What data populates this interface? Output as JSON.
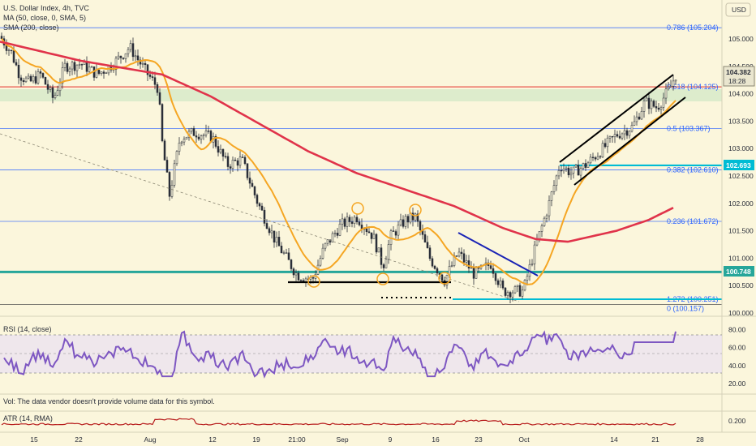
{
  "header": {
    "title": "U.S. Dollar Index, 4h, TVC",
    "ma50": "MA (50, close, 0, SMA, 5)",
    "sma200": "SMA (200, close)",
    "currency": "USD"
  },
  "rsi_label": "RSI (14, close)",
  "vol_label": "Vol: The data vendor doesn't provide volume data for this symbol.",
  "atr_label": "ATR (14, RMA)",
  "fib": [
    {
      "label": "0.786 (105.204)",
      "price": 105.204
    },
    {
      "label": "0.618 (104.125)",
      "price": 104.125
    },
    {
      "label": "0.5 (103.367)",
      "price": 103.367
    },
    {
      "label": "0.382 (102.610)",
      "price": 102.61
    },
    {
      "label": "0.236 (101.672)",
      "price": 101.672
    },
    {
      "label": "1.272 (100.251)",
      "price": 100.251
    },
    {
      "label": "0 (100.157)",
      "price": 100.157
    }
  ],
  "tags": {
    "last_price": "104.382",
    "countdown": "18:28",
    "resistance": "102.693",
    "support": "100.748"
  },
  "colors": {
    "background": "#fbf6dc",
    "candle_up": "#2a2e39",
    "candle_down": "#2a2e39",
    "ma50": "#f5a623",
    "sma200": "#e0334a",
    "fib_line": "#2962ff",
    "fib_618": "#e53935",
    "support_line": "#26a69a",
    "resistance_line": "#00bcd4",
    "rsi_line": "#7e57c2",
    "atr_line": "#b71c1c",
    "zone_fill": "#c9e6c2"
  },
  "chart_data": [
    {
      "type": "line",
      "title": "U.S. Dollar Index, 4h, TVC",
      "x_tick_labels": [
        "15",
        "22",
        "Aug",
        "12",
        "19",
        "21:00",
        "Sep",
        "9",
        "16",
        "23",
        "Oct",
        "14",
        "21",
        "28"
      ],
      "y_tick_labels": [
        "105.000",
        "104.500",
        "104.000",
        "103.500",
        "103.000",
        "102.500",
        "102.000",
        "101.500",
        "101.000",
        "100.500",
        "100.000"
      ],
      "ylim": [
        99.95,
        105.6
      ],
      "approx_closes_by_tick": [
        {
          "x": "15",
          "y": 104.9
        },
        {
          "x": "22",
          "y": 104.3
        },
        {
          "x": "Aug",
          "y": 104.5
        },
        {
          "x": "12",
          "y": 103.0
        },
        {
          "x": "19",
          "y": 101.6
        },
        {
          "x": "21:00",
          "y": 100.6
        },
        {
          "x": "Sep",
          "y": 101.8
        },
        {
          "x": "9",
          "y": 101.6
        },
        {
          "x": "16",
          "y": 100.9
        },
        {
          "x": "23",
          "y": 100.5
        },
        {
          "x": "Oct",
          "y": 101.1
        },
        {
          "x": "14",
          "y": 103.1
        },
        {
          "x": "21",
          "y": 104.0
        }
      ],
      "last_price": 104.382,
      "series": [
        {
          "name": "MA (50, close, 0, SMA, 5)"
        },
        {
          "name": "SMA (200, close)"
        }
      ],
      "horizontal_levels": [
        105.204,
        104.125,
        103.367,
        102.693,
        102.61,
        101.672,
        100.748,
        100.251,
        100.157
      ]
    },
    {
      "type": "line",
      "title": "RSI (14, close)",
      "y_tick_labels": [
        "80.00",
        "60.00",
        "40.00",
        "20.00"
      ],
      "ylim": [
        20,
        85
      ],
      "last_value": 78
    },
    {
      "type": "line",
      "title": "ATR (14, RMA)",
      "y_tick_labels": [
        "0.200"
      ],
      "last_value": 0.19
    }
  ]
}
